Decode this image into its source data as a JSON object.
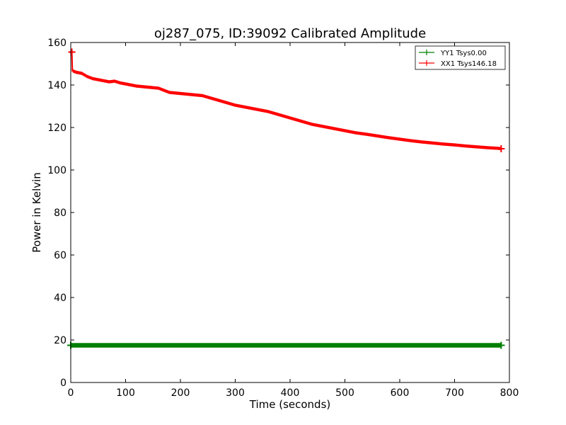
{
  "chart_data": {
    "type": "line",
    "title": "oj287_075, ID:39092 Calibrated Amplitude",
    "xlabel": "Time (seconds)",
    "ylabel": "Power in Kelvin",
    "xlim": [
      0,
      800
    ],
    "ylim": [
      0,
      160
    ],
    "xticks": [
      "0",
      "100",
      "200",
      "300",
      "400",
      "500",
      "600",
      "700",
      "800"
    ],
    "yticks": [
      "0",
      "20",
      "40",
      "60",
      "80",
      "100",
      "120",
      "140",
      "160"
    ],
    "grid": false,
    "legend_position": "top-right",
    "series": [
      {
        "name": "YY1 Tsys0.00",
        "color": "#008000",
        "x": [
          0,
          100,
          200,
          300,
          400,
          500,
          600,
          700,
          785
        ],
        "y": [
          17.5,
          17.5,
          17.5,
          17.5,
          17.5,
          17.5,
          17.5,
          17.5,
          17.5
        ]
      },
      {
        "name": "XX1 Tsys146.18",
        "color": "#ff0000",
        "x": [
          2,
          3,
          5,
          10,
          20,
          30,
          40,
          50,
          60,
          70,
          80,
          90,
          100,
          120,
          140,
          160,
          170,
          180,
          200,
          220,
          240,
          260,
          280,
          300,
          320,
          340,
          360,
          380,
          400,
          420,
          440,
          460,
          480,
          500,
          520,
          540,
          560,
          580,
          600,
          620,
          640,
          660,
          680,
          700,
          720,
          740,
          760,
          780,
          785
        ],
        "y": [
          155.5,
          147,
          146.5,
          146,
          145.5,
          144,
          143,
          142.5,
          142,
          141.5,
          141.8,
          141,
          140.5,
          139.5,
          139,
          138.5,
          137.5,
          136.5,
          136,
          135.5,
          135,
          133.5,
          132,
          130.5,
          129.5,
          128.5,
          127.5,
          126,
          124.5,
          123,
          121.5,
          120.5,
          119.5,
          118.5,
          117.5,
          116.8,
          116,
          115.2,
          114.5,
          113.8,
          113.2,
          112.7,
          112.2,
          111.8,
          111.3,
          110.9,
          110.5,
          110.2,
          110
        ]
      }
    ]
  }
}
